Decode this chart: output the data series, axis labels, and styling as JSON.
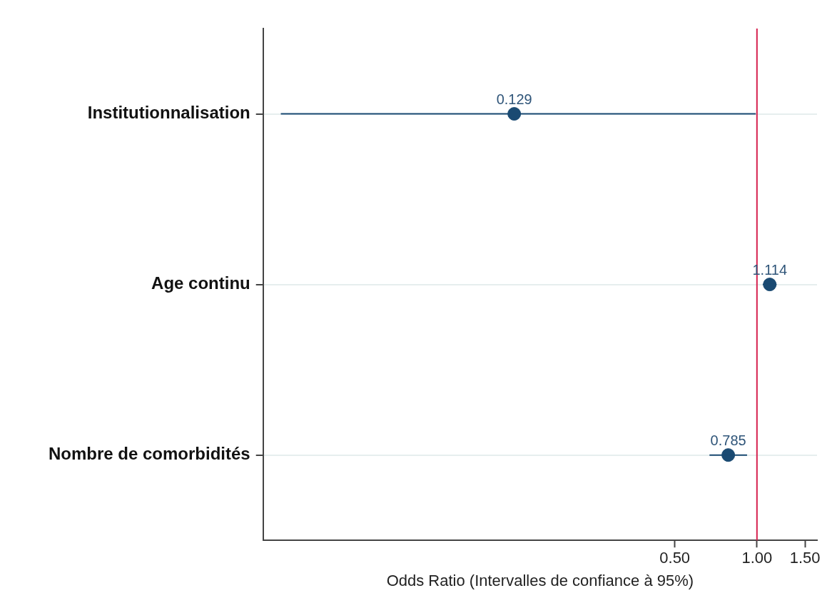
{
  "chart_data": {
    "type": "scatter",
    "orientation": "horizontal",
    "xlabel": "Odds Ratio (Intervalles de confiance à 95%)",
    "categories": [
      "Institutionnalisation",
      "Age continu",
      "Nombre de comorbidités"
    ],
    "series": [
      {
        "color": "#1a4a72",
        "values": [
          0.129,
          1.114,
          0.785
        ],
        "errors": [
          [
            0.018,
            0.99
          ],
          [
            1.05,
            1.18
          ],
          [
            0.67,
            0.92
          ]
        ]
      }
    ],
    "data_labels": true,
    "log": "x",
    "xlim": [
      0.0155,
      1.66
    ],
    "xticks": [
      {
        "value": 0.5,
        "label": "0.50"
      },
      {
        "value": 1,
        "label": "1.00"
      },
      {
        "value": 1.5,
        "label": "1.50"
      }
    ],
    "ref_lines": [
      {
        "axis": "x",
        "value": 1,
        "color": "#d6204e"
      }
    ],
    "grid": "y",
    "marker": "circle",
    "legend": false
  }
}
